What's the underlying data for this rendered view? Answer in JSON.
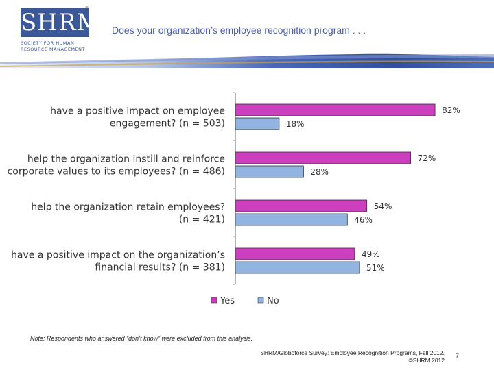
{
  "logo": {
    "letters": "SHRM",
    "line1": "SOCIETY FOR HUMAN",
    "line2": "RESOURCE MANAGEMENT",
    "reg": "®",
    "color": "#3b5998"
  },
  "header": {
    "title": "Does your organization’s employee recognition program . . ."
  },
  "chart_data": {
    "type": "bar",
    "orientation": "horizontal",
    "categories": [
      [
        "have a positive impact on employee",
        "engagement? (n = 503)"
      ],
      [
        "help the organization instill and reinforce",
        "corporate values to its employees? (n = 486)"
      ],
      [
        "help the organization retain employees?",
        "(n = 421)"
      ],
      [
        "have a positive impact on the organization’s",
        "financial results? (n = 381)"
      ]
    ],
    "series": [
      {
        "name": "Yes",
        "values": [
          82,
          72,
          54,
          49
        ],
        "color": "#cc3fbf"
      },
      {
        "name": "No",
        "values": [
          18,
          28,
          46,
          51
        ],
        "color": "#92b4e0"
      }
    ],
    "value_suffix": "%",
    "xlim": [
      0,
      100
    ],
    "grid": false,
    "legend_position": "bottom"
  },
  "footer": {
    "note": "Note: Respondents who answered “don’t know” were excluded from this analysis.",
    "source_line1": "SHRM/Globoforce Survey: Employee Recognition Programs, Fall 2012.",
    "source_line2": "©SHRM 2012",
    "page_number": "7"
  }
}
